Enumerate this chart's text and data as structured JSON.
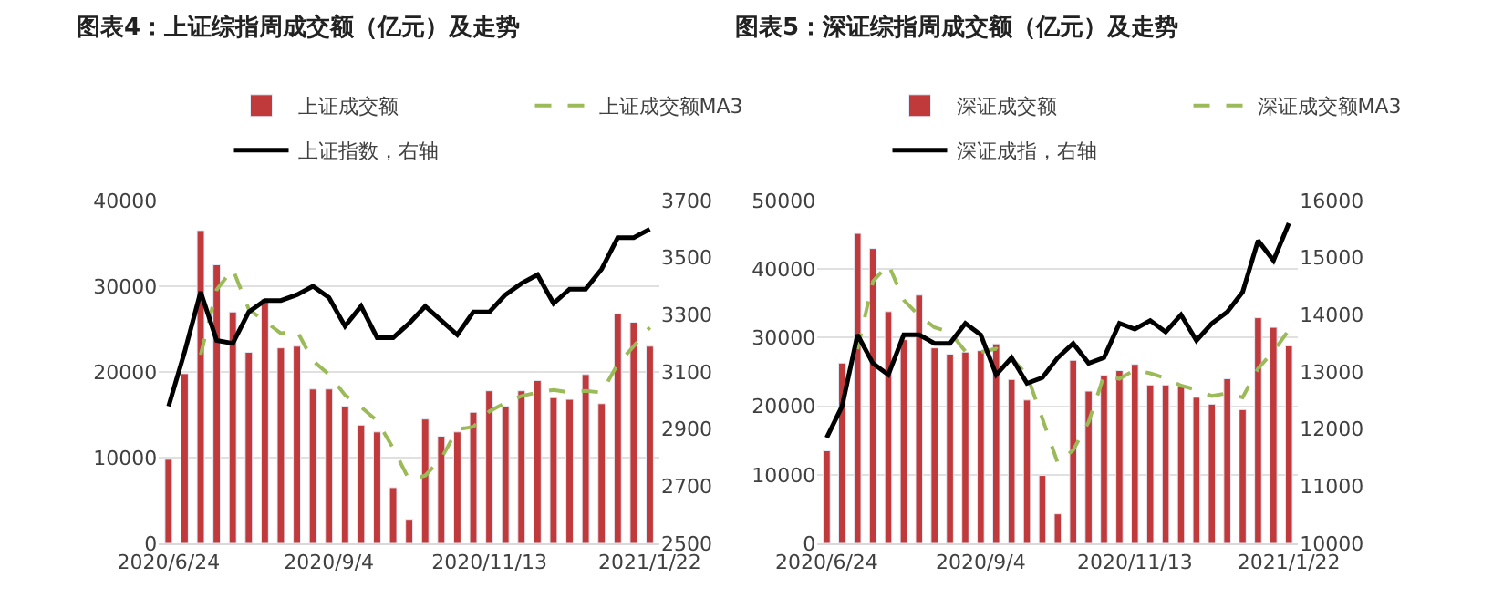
{
  "chart_data": [
    {
      "type": "bar",
      "title": "图表4：上证综指周成交额（亿元）及走势",
      "categories": [
        "2020/6/24",
        null,
        null,
        null,
        null,
        null,
        null,
        null,
        null,
        null,
        "2020/9/4",
        null,
        null,
        null,
        null,
        null,
        null,
        null,
        null,
        null,
        "2020/11/13",
        null,
        null,
        null,
        null,
        null,
        null,
        null,
        null,
        null,
        "2021/1/22"
      ],
      "series": [
        {
          "name": "上证成交额",
          "type": "bar",
          "color": "#c0393b",
          "values": [
            9800,
            19800,
            36500,
            32500,
            27000,
            22300,
            28500,
            22800,
            23000,
            18000,
            18000,
            16000,
            13800,
            13000,
            6500,
            2800,
            14500,
            12500,
            13000,
            15300,
            17800,
            16000,
            17800,
            19000,
            17000,
            16800,
            19700,
            16300,
            26800,
            25800,
            23000
          ]
        },
        {
          "name": "上证成交额MA3",
          "type": "line",
          "line_style": "dashed",
          "color": "#9bbb59",
          "values": [
            null,
            null,
            22000,
            29600,
            32000,
            27300,
            25900,
            24500,
            24800,
            21300,
            19700,
            17300,
            15900,
            14300,
            11100,
            7400,
            7900,
            9900,
            13300,
            13600,
            15400,
            16400,
            17200,
            17600,
            17900,
            17600,
            17800,
            17600,
            20900,
            23000,
            25200
          ]
        },
        {
          "name": "上证指数，右轴",
          "type": "line",
          "axis": "y2",
          "line_style": "solid",
          "color": "#000000",
          "values": [
            2980,
            3170,
            3380,
            3210,
            3200,
            3310,
            3350,
            3350,
            3370,
            3400,
            3360,
            3260,
            3330,
            3220,
            3220,
            3270,
            3330,
            3280,
            3230,
            3310,
            3310,
            3370,
            3410,
            3440,
            3340,
            3390,
            3390,
            3460,
            3570,
            3570,
            3600
          ]
        }
      ],
      "ylim": [
        0,
        40000
      ],
      "yticks": [
        0,
        10000,
        20000,
        30000,
        40000
      ],
      "y2lim": [
        2500,
        3700
      ],
      "y2ticks": [
        2500,
        2700,
        2900,
        3100,
        3300,
        3500,
        3700
      ],
      "legend": "top",
      "grid": "y"
    },
    {
      "type": "bar",
      "title": "图表5：深证综指周成交额（亿元）及走势",
      "categories": [
        "2020/6/24",
        null,
        null,
        null,
        null,
        null,
        null,
        null,
        null,
        null,
        "2020/9/4",
        null,
        null,
        null,
        null,
        null,
        null,
        null,
        null,
        null,
        "2020/11/13",
        null,
        null,
        null,
        null,
        null,
        null,
        null,
        null,
        null,
        "2021/1/22"
      ],
      "series": [
        {
          "name": "深证成交额",
          "type": "bar",
          "color": "#c0393b",
          "values": [
            13500,
            26300,
            45200,
            43000,
            33800,
            29700,
            36200,
            28500,
            27600,
            27900,
            28100,
            29100,
            23900,
            20900,
            9900,
            4300,
            26700,
            22200,
            24500,
            25200,
            26100,
            23100,
            23100,
            22800,
            21300,
            20300,
            24000,
            19500,
            32900,
            31500,
            28800
          ]
        },
        {
          "name": "深证成交额MA3",
          "type": "line",
          "line_style": "dashed",
          "color": "#9bbb59",
          "values": [
            null,
            null,
            28300,
            38200,
            40700,
            35500,
            33200,
            31500,
            30800,
            28000,
            27900,
            28400,
            27000,
            24600,
            18200,
            11700,
            13600,
            17700,
            24500,
            24000,
            25300,
            24800,
            24100,
            23000,
            22400,
            21500,
            21900,
            21300,
            25500,
            28000,
            31100
          ]
        },
        {
          "name": "深证成指，右轴",
          "type": "line",
          "axis": "y2",
          "line_style": "solid",
          "color": "#000000",
          "values": [
            11850,
            12400,
            13650,
            13150,
            12950,
            13650,
            13650,
            13500,
            13500,
            13850,
            13650,
            12950,
            13250,
            12800,
            12900,
            13250,
            13500,
            13150,
            13250,
            13850,
            13750,
            13900,
            13700,
            14000,
            13550,
            13850,
            14050,
            14400,
            15300,
            14950,
            15600
          ]
        }
      ],
      "ylim": [
        0,
        50000
      ],
      "yticks": [
        0,
        10000,
        20000,
        30000,
        40000,
        50000
      ],
      "y2lim": [
        10000,
        16000
      ],
      "y2ticks": [
        10000,
        11000,
        12000,
        13000,
        14000,
        15000,
        16000
      ],
      "legend": "top",
      "grid": "y"
    }
  ]
}
